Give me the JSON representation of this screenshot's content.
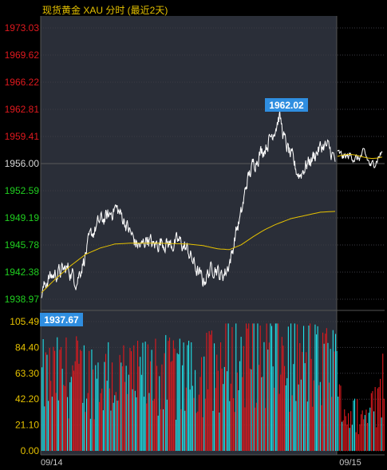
{
  "title": "现货黄金 XAU 分时 (最近2天)",
  "colors": {
    "background": "#000000",
    "panel_day1": "#2a2e38",
    "up": "#e0191e",
    "down": "#1fe3ea",
    "price_line": "#ffffff",
    "average_line": "#e6c200",
    "axis_up": "#e0191e",
    "axis_base": "#d8d8d8",
    "axis_down": "#20d020",
    "volume_axis": "#e6c200",
    "callout_bg": "#2f8ee0"
  },
  "chart_data": {
    "type": "line",
    "title": "现货黄金 XAU 分时 (最近2天)",
    "price_axis": {
      "ticks": [
        "1973.03",
        "1969.62",
        "1966.22",
        "1962.81",
        "1959.41",
        "1956.00",
        "1952.59",
        "1949.19",
        "1945.78",
        "1942.38",
        "1938.97"
      ],
      "min": 1938.97,
      "max": 1973.03,
      "base": 1956.0
    },
    "volume_axis": {
      "ticks": [
        "105.49",
        "84.40",
        "63.30",
        "42.20",
        "21.10",
        "0.00"
      ],
      "min": 0,
      "max": 105.49
    },
    "x_labels": [
      "09/14",
      "09/15"
    ],
    "annotations": {
      "high": "1962.02",
      "low": "1937.67"
    },
    "price_keypoints_day1": [
      [
        0,
        1939.6
      ],
      [
        0.02,
        1941.5
      ],
      [
        0.05,
        1942.2
      ],
      [
        0.09,
        1942.8
      ],
      [
        0.12,
        1941.3
      ],
      [
        0.14,
        1943.5
      ],
      [
        0.17,
        1947.0
      ],
      [
        0.2,
        1948.8
      ],
      [
        0.23,
        1949.4
      ],
      [
        0.25,
        1950.6
      ],
      [
        0.28,
        1949.0
      ],
      [
        0.3,
        1947.5
      ],
      [
        0.32,
        1946.0
      ],
      [
        0.34,
        1945.5
      ],
      [
        0.36,
        1946.8
      ],
      [
        0.38,
        1945.6
      ],
      [
        0.41,
        1946.3
      ],
      [
        0.44,
        1945.8
      ],
      [
        0.47,
        1946.2
      ],
      [
        0.5,
        1945.0
      ],
      [
        0.53,
        1942.5
      ],
      [
        0.55,
        1941.2
      ],
      [
        0.57,
        1942.4
      ],
      [
        0.59,
        1943.2
      ],
      [
        0.61,
        1941.8
      ],
      [
        0.63,
        1942.6
      ],
      [
        0.65,
        1944.8
      ],
      [
        0.66,
        1947.2
      ],
      [
        0.68,
        1949.5
      ],
      [
        0.7,
        1953.8
      ],
      [
        0.72,
        1955.8
      ],
      [
        0.74,
        1957.2
      ],
      [
        0.76,
        1958.0
      ],
      [
        0.78,
        1959.3
      ],
      [
        0.8,
        1961.0
      ],
      [
        0.81,
        1962.02
      ],
      [
        0.83,
        1958.6
      ],
      [
        0.85,
        1956.8
      ],
      [
        0.87,
        1955.0
      ],
      [
        0.88,
        1954.6
      ],
      [
        0.9,
        1955.8
      ],
      [
        0.92,
        1956.6
      ],
      [
        0.94,
        1957.6
      ],
      [
        0.96,
        1958.3
      ],
      [
        0.98,
        1957.8
      ],
      [
        1.0,
        1956.4
      ]
    ],
    "price_keypoints_day2": [
      [
        0,
        1957.2
      ],
      [
        0.15,
        1956.8
      ],
      [
        0.3,
        1957.0
      ],
      [
        0.45,
        1956.5
      ],
      [
        0.6,
        1957.3
      ],
      [
        0.75,
        1955.6
      ],
      [
        0.85,
        1956.3
      ],
      [
        1.0,
        1957.5
      ]
    ],
    "average_keypoints": [
      [
        0,
        1939.8
      ],
      [
        0.05,
        1941.6
      ],
      [
        0.1,
        1943.2
      ],
      [
        0.15,
        1944.6
      ],
      [
        0.2,
        1945.4
      ],
      [
        0.25,
        1945.9
      ],
      [
        0.3,
        1946.0
      ],
      [
        0.4,
        1946.0
      ],
      [
        0.5,
        1945.9
      ],
      [
        0.55,
        1945.7
      ],
      [
        0.6,
        1945.3
      ],
      [
        0.64,
        1945.2
      ],
      [
        0.68,
        1945.8
      ],
      [
        0.72,
        1946.8
      ],
      [
        0.76,
        1947.7
      ],
      [
        0.8,
        1948.4
      ],
      [
        0.85,
        1949.1
      ],
      [
        0.9,
        1949.5
      ],
      [
        0.95,
        1949.9
      ],
      [
        1.0,
        1950.0
      ]
    ],
    "volume_profile": [
      [
        0,
        70
      ],
      [
        0.1,
        75
      ],
      [
        0.2,
        72
      ],
      [
        0.3,
        68
      ],
      [
        0.4,
        74
      ],
      [
        0.5,
        70
      ],
      [
        0.6,
        82
      ],
      [
        0.7,
        95
      ],
      [
        0.8,
        92
      ],
      [
        0.9,
        84
      ],
      [
        1.0,
        78
      ]
    ],
    "volume_profile_day2": [
      [
        0,
        45
      ],
      [
        0.3,
        35
      ],
      [
        0.6,
        32
      ],
      [
        0.8,
        42
      ],
      [
        1.0,
        70
      ]
    ]
  }
}
